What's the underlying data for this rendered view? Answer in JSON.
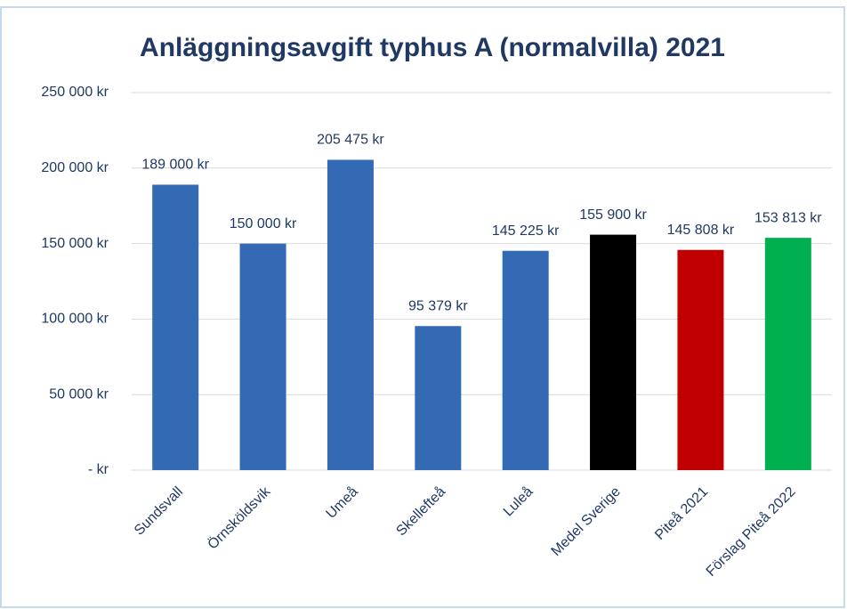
{
  "chart_data": {
    "type": "bar",
    "title": "Anläggningsavgift typhus A (normalvilla) 2021",
    "categories": [
      "Sundsvall",
      "Örnsköldsvik",
      "Umeå",
      "Skellefteå",
      "Luleå",
      "Medel Sverige",
      "Piteå 2021",
      "Förslag Piteå 2022"
    ],
    "values": [
      189000,
      150000,
      205475,
      95379,
      145225,
      155900,
      145808,
      153813
    ],
    "value_labels": [
      "189 000 kr",
      "150 000 kr",
      "205 475 kr",
      "95 379 kr",
      "145 225 kr",
      "155 900 kr",
      "145 808 kr",
      "153 813 kr"
    ],
    "colors": [
      "#3469b4",
      "#3469b4",
      "#3469b4",
      "#3469b4",
      "#3469b4",
      "#000000",
      "#c00000",
      "#00b050"
    ],
    "ylim": [
      0,
      250000
    ],
    "yticks": [
      {
        "value": 0,
        "label": "-   kr"
      },
      {
        "value": 50000,
        "label": "50 000 kr"
      },
      {
        "value": 100000,
        "label": "100 000 kr"
      },
      {
        "value": 150000,
        "label": "150 000 kr"
      },
      {
        "value": 200000,
        "label": "200 000 kr"
      },
      {
        "value": 250000,
        "label": "250 000 kr"
      }
    ],
    "grid": true
  }
}
